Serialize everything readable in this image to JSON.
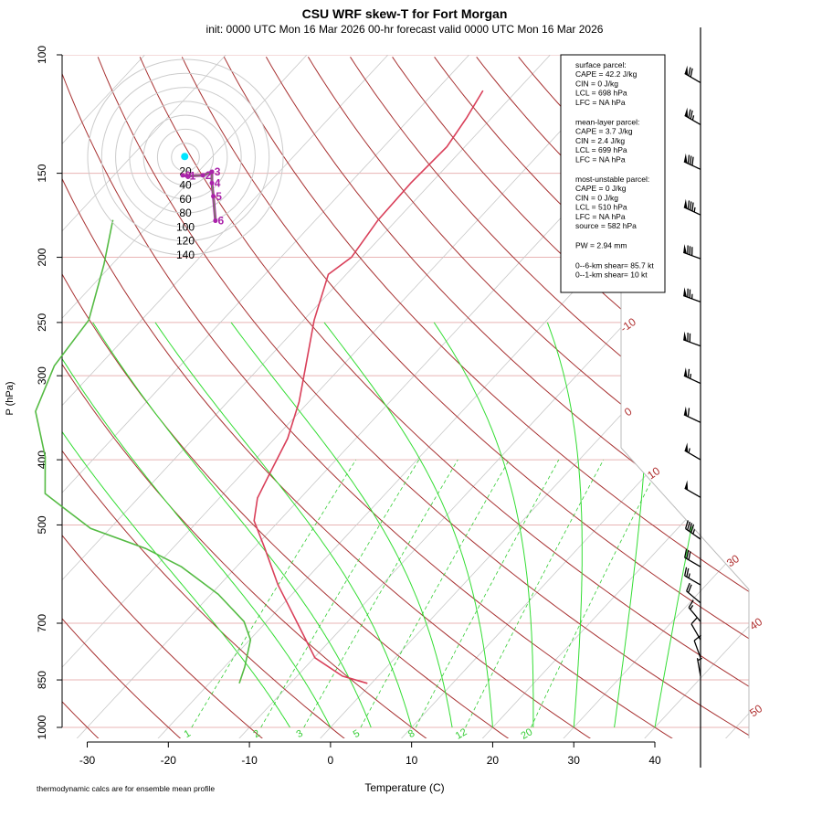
{
  "chart_data": {
    "type": "skewt",
    "title": "CSU WRF skew-T for Fort Morgan",
    "subtitle": "init: 0000 UTC Mon 16 Mar 2026     00-hr forecast valid 0000 UTC Mon 16 Mar 2026",
    "xlabel": "Temperature (C)",
    "ylabel": "P (hPa)",
    "footnote": "thermodynamic calcs are for ensemble mean profile",
    "log_y": true,
    "xlim": [
      -33.1,
      51.6
    ],
    "ylim": [
      1000,
      100
    ],
    "xticks": [
      -30,
      -20,
      -10,
      0,
      10,
      20,
      30,
      40
    ],
    "yticks": [
      100,
      150,
      200,
      250,
      300,
      400,
      500,
      700,
      850,
      1000
    ],
    "isotherms": [
      -110,
      -100,
      -90,
      -80,
      -70,
      -60,
      -50,
      -40,
      -30,
      -20,
      -10,
      0,
      10,
      20,
      30,
      40,
      50
    ],
    "isotherm_labels": [
      -10,
      0,
      10,
      30,
      40,
      50
    ],
    "dry_adiabats": [
      -30,
      -20,
      -10,
      0,
      10,
      20,
      30,
      40,
      50,
      60,
      70,
      80,
      90,
      100,
      110,
      120,
      130,
      140,
      150,
      160,
      170
    ],
    "moist_adiabats": [
      -5,
      0,
      5,
      10,
      15,
      20,
      25,
      30,
      35,
      40
    ],
    "mixing_ratios": [
      1,
      2,
      3,
      5,
      8,
      12,
      20
    ],
    "series": [
      {
        "color": "#d9405a",
        "pressure": [
          860,
          839,
          788,
          718,
          653,
          614,
          542,
          493,
          456,
          422,
          372,
          328,
          290,
          248,
          212,
          200,
          176,
          155,
          137,
          124,
          113
        ],
        "values": [
          -0.5,
          -4.4,
          -9.9,
          -14.7,
          -19.6,
          -22.8,
          -28.6,
          -33.1,
          -35.3,
          -36.5,
          -38.4,
          -41.2,
          -44.5,
          -48.7,
          -52.2,
          -51.3,
          -52.3,
          -52.5,
          -52.2,
          -53.1,
          -54.2
        ]
      },
      {
        "color": "#55bb44",
        "pressure": [
          860,
          813,
          741,
          696,
          634,
          577,
          542,
          506,
          471,
          449,
          396,
          339,
          290,
          248,
          205,
          176
        ],
        "values": [
          -16.3,
          -17.5,
          -19.9,
          -22.8,
          -29.1,
          -36.8,
          -43.3,
          -52.4,
          -58.2,
          -62,
          -66.2,
          -72.6,
          -75.5,
          -76.5,
          -81,
          -85
        ]
      }
    ],
    "hodograph": {
      "rings": [
        20,
        40,
        60,
        80,
        100,
        120,
        140
      ],
      "labels": [
        0,
        1,
        2,
        3,
        4,
        5,
        6
      ],
      "u": [
        -3.9,
        2.6,
        25,
        38,
        38,
        40,
        43
      ],
      "v": [
        -26,
        -27,
        -26,
        -21,
        -37,
        -56,
        -91
      ],
      "color": "#aa22aa",
      "marker": [
        -1,
        1
      ]
    },
    "winds": {
      "pressure": [
        110,
        127,
        148,
        173,
        201,
        233,
        271,
        308,
        352,
        400,
        455,
        525,
        577,
        614,
        653,
        696,
        741,
        788,
        839
      ],
      "speed": [
        70,
        75,
        80,
        85,
        80,
        75,
        70,
        65,
        60,
        55,
        50,
        45,
        30,
        25,
        20,
        15,
        10,
        10,
        5
      ],
      "direction": [
        300,
        300,
        295,
        295,
        290,
        290,
        290,
        295,
        295,
        300,
        300,
        305,
        300,
        300,
        310,
        320,
        330,
        340,
        350
      ]
    },
    "info_box": [
      [
        "surface parcel:",
        "CAPE = 42.2 J/kg",
        "CIN = 0 J/kg",
        "LCL = 698 hPa",
        "LFC = NA hPa"
      ],
      [
        "mean-layer parcel:",
        "CAPE = 3.7 J/kg",
        "CIN = 2.4 J/kg",
        "LCL = 699 hPa",
        "LFC = NA hPa"
      ],
      [
        "most-unstable parcel:",
        "CAPE = 0 J/kg",
        "CIN = 0 J/kg",
        "LCL = 510 hPa",
        "LFC = NA hPa",
        "source = 582 hPa"
      ],
      [
        "PW =  2.94 mm"
      ],
      [
        "0--6-km shear= 85.7 kt",
        "0--1-km shear= 10 kt"
      ]
    ]
  }
}
